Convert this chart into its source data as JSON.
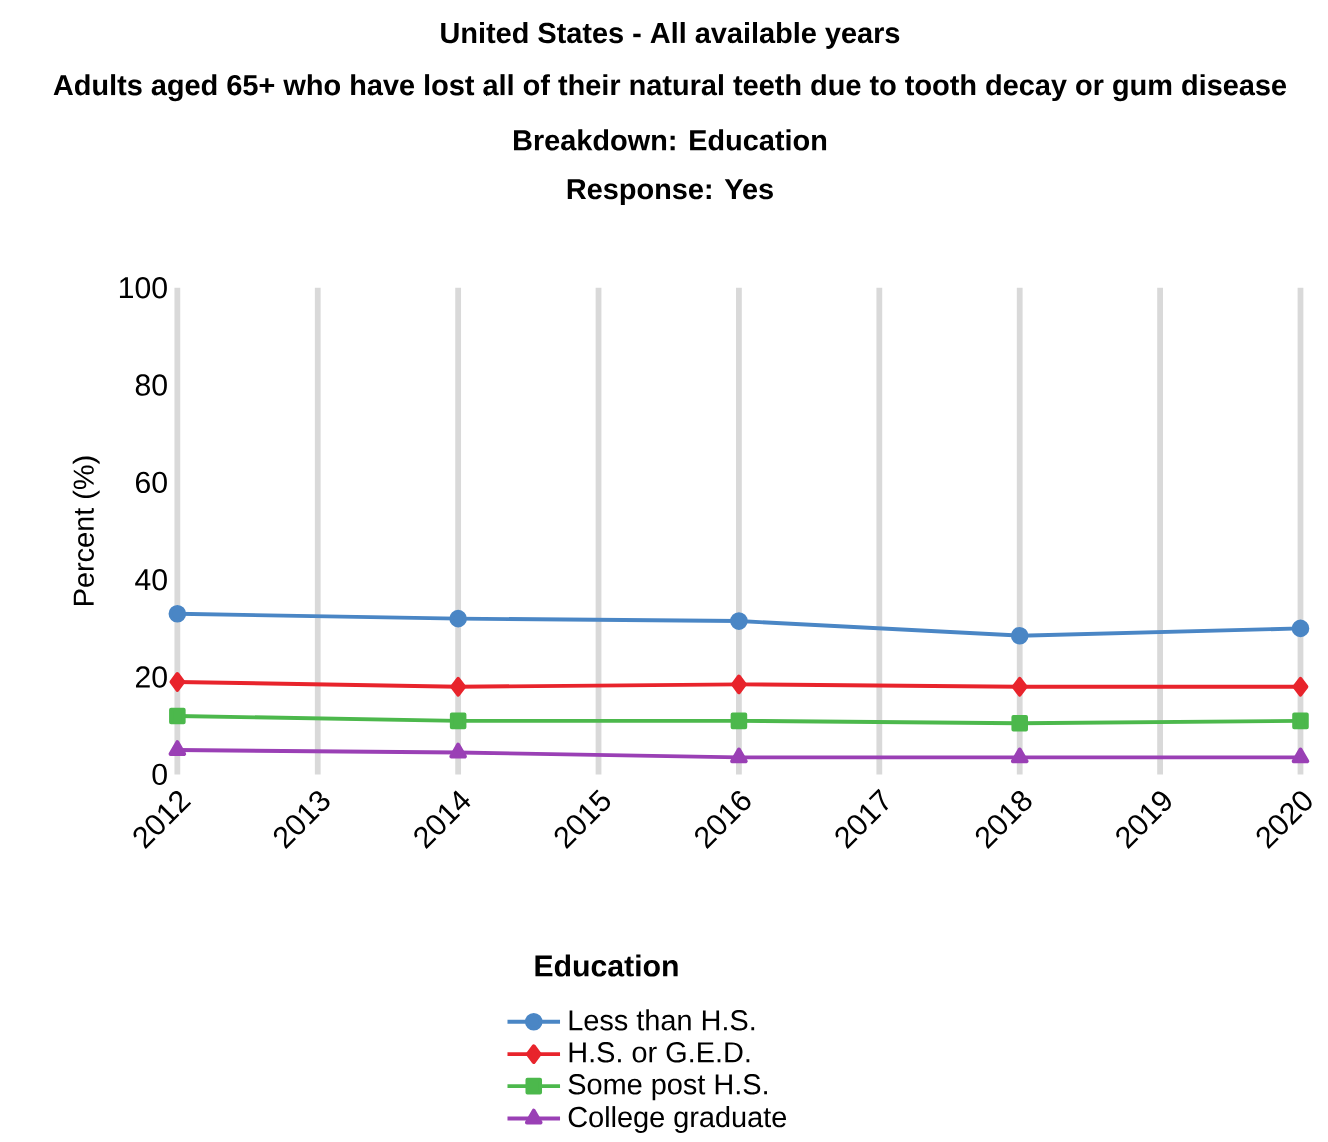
{
  "chart_data": {
    "type": "line",
    "title": "United States - All available years",
    "subtitle": "Adults aged 65+ who have lost all of their natural teeth due to tooth decay or gum disease",
    "annotations": [
      "Breakdown: Education",
      "Response: Yes"
    ],
    "ylabel": "Percent (%)",
    "legend_title": "Education",
    "x": [
      2012,
      2014,
      2016,
      2018,
      2020
    ],
    "xlim": [
      2012,
      2020
    ],
    "xticks": [
      2012,
      2013,
      2014,
      2015,
      2016,
      2017,
      2018,
      2019,
      2020
    ],
    "ylim": [
      0,
      100
    ],
    "yticks": [
      0,
      20,
      40,
      60,
      80,
      100
    ],
    "grid": "x",
    "legend": "bottom",
    "series": [
      {
        "name": "Less than H.S.",
        "color": "#4a86c5",
        "marker": "circle",
        "values": [
          33,
          32,
          31.5,
          28.5,
          30
        ]
      },
      {
        "name": "H.S. or G.E.D.",
        "color": "#e8242c",
        "marker": "diamond",
        "values": [
          19,
          18,
          18.5,
          18,
          18
        ]
      },
      {
        "name": "Some post H.S.",
        "color": "#4cb84c",
        "marker": "square",
        "values": [
          12,
          11,
          11,
          10.5,
          11
        ]
      },
      {
        "name": "College graduate",
        "color": "#9a40b5",
        "marker": "triangle",
        "values": [
          5,
          4.5,
          3.5,
          3.5,
          3.5
        ]
      }
    ]
  }
}
